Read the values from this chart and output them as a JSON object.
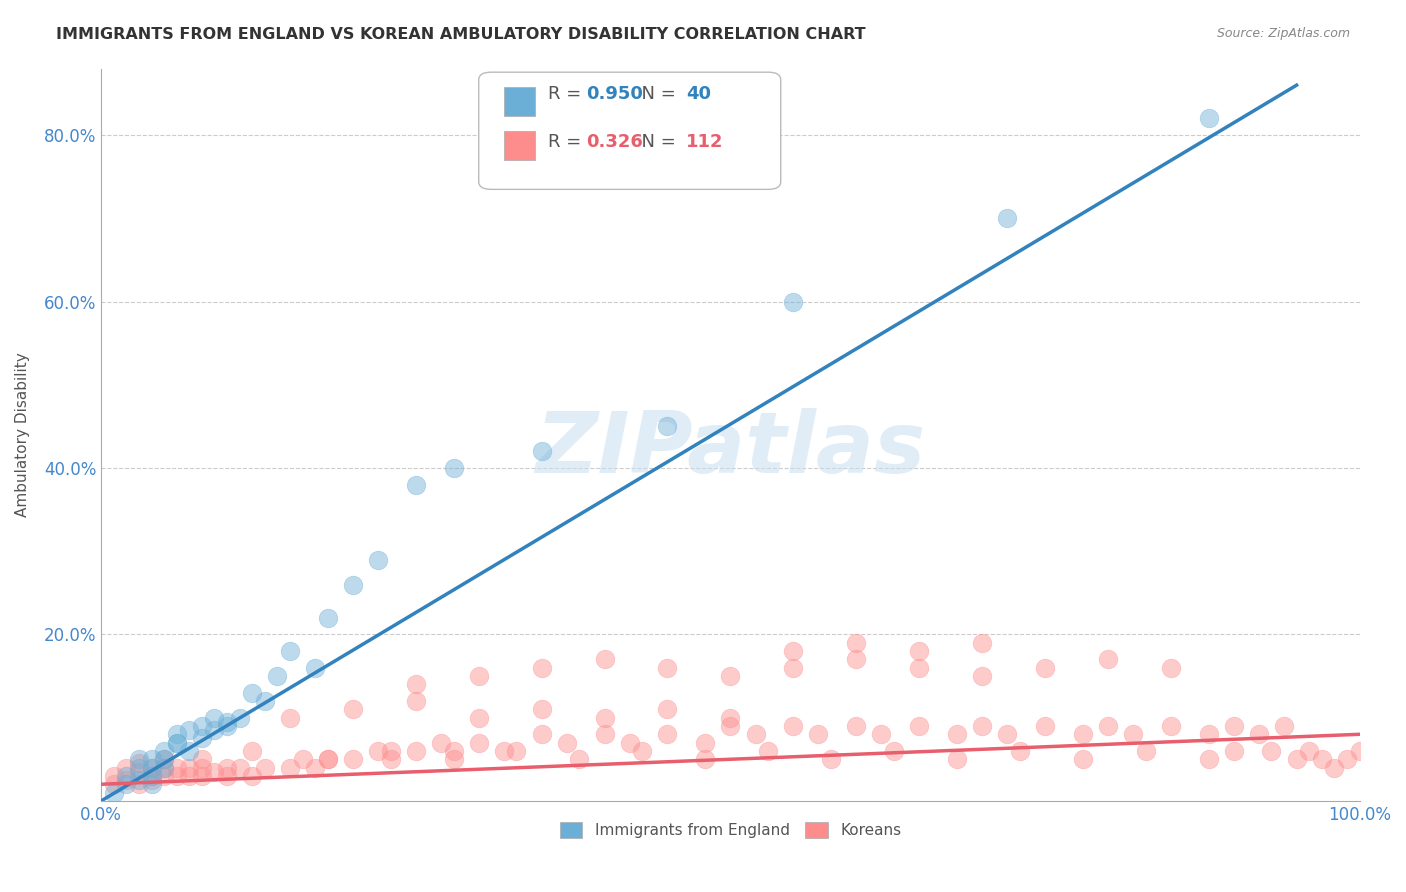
{
  "title": "IMMIGRANTS FROM ENGLAND VS KOREAN AMBULATORY DISABILITY CORRELATION CHART",
  "source": "Source: ZipAtlas.com",
  "ylabel": "Ambulatory Disability",
  "xlabel": "",
  "xlim": [
    0.0,
    1.0
  ],
  "ylim": [
    0.0,
    0.88
  ],
  "xtick_labels": [
    "0.0%",
    "100.0%"
  ],
  "ytick_labels": [
    "20.0%",
    "40.0%",
    "60.0%",
    "80.0%"
  ],
  "ytick_vals": [
    0.2,
    0.4,
    0.6,
    0.8
  ],
  "legend_blue_r": "0.950",
  "legend_blue_n": "40",
  "legend_pink_r": "0.326",
  "legend_pink_n": "112",
  "legend_label_blue": "Immigrants from England",
  "legend_label_pink": "Koreans",
  "blue_color": "#6baed6",
  "pink_color": "#fd8d8d",
  "blue_line_color": "#3182bd",
  "pink_line_color": "#e85e6c",
  "watermark": "ZIPatlas",
  "bg_color": "#ffffff",
  "grid_color": "#cccccc",
  "title_color": "#333333",
  "axis_label_color": "#555555",
  "tick_color": "#4488cc",
  "blue_scatter_x": [
    0.01,
    0.02,
    0.02,
    0.03,
    0.03,
    0.03,
    0.04,
    0.04,
    0.04,
    0.04,
    0.05,
    0.05,
    0.05,
    0.06,
    0.06,
    0.06,
    0.07,
    0.07,
    0.08,
    0.08,
    0.09,
    0.09,
    0.1,
    0.1,
    0.11,
    0.12,
    0.13,
    0.14,
    0.15,
    0.17,
    0.18,
    0.2,
    0.22,
    0.25,
    0.28,
    0.35,
    0.45,
    0.55,
    0.72,
    0.88
  ],
  "blue_scatter_y": [
    0.01,
    0.03,
    0.02,
    0.025,
    0.04,
    0.05,
    0.03,
    0.04,
    0.05,
    0.02,
    0.04,
    0.06,
    0.05,
    0.07,
    0.08,
    0.07,
    0.06,
    0.085,
    0.075,
    0.09,
    0.1,
    0.085,
    0.09,
    0.095,
    0.1,
    0.13,
    0.12,
    0.15,
    0.18,
    0.16,
    0.22,
    0.26,
    0.29,
    0.38,
    0.4,
    0.42,
    0.45,
    0.6,
    0.7,
    0.82
  ],
  "pink_scatter_x": [
    0.01,
    0.01,
    0.02,
    0.02,
    0.03,
    0.03,
    0.03,
    0.04,
    0.04,
    0.04,
    0.05,
    0.05,
    0.05,
    0.06,
    0.06,
    0.07,
    0.07,
    0.08,
    0.08,
    0.09,
    0.1,
    0.1,
    0.11,
    0.12,
    0.13,
    0.15,
    0.16,
    0.17,
    0.18,
    0.2,
    0.22,
    0.23,
    0.25,
    0.27,
    0.28,
    0.3,
    0.32,
    0.35,
    0.37,
    0.4,
    0.42,
    0.45,
    0.48,
    0.5,
    0.52,
    0.55,
    0.57,
    0.6,
    0.62,
    0.65,
    0.68,
    0.7,
    0.72,
    0.75,
    0.78,
    0.8,
    0.82,
    0.85,
    0.88,
    0.9,
    0.92,
    0.94,
    0.95,
    0.96,
    0.97,
    0.98,
    0.99,
    1.0,
    0.25,
    0.3,
    0.35,
    0.4,
    0.45,
    0.5,
    0.55,
    0.6,
    0.65,
    0.7,
    0.75,
    0.8,
    0.85,
    0.9,
    0.15,
    0.2,
    0.25,
    0.3,
    0.35,
    0.4,
    0.45,
    0.5,
    0.08,
    0.12,
    0.18,
    0.23,
    0.28,
    0.33,
    0.38,
    0.43,
    0.48,
    0.53,
    0.58,
    0.63,
    0.68,
    0.73,
    0.78,
    0.83,
    0.88,
    0.93,
    0.55,
    0.6,
    0.65,
    0.7
  ],
  "pink_scatter_y": [
    0.02,
    0.03,
    0.025,
    0.04,
    0.02,
    0.035,
    0.045,
    0.025,
    0.04,
    0.03,
    0.03,
    0.04,
    0.05,
    0.03,
    0.04,
    0.03,
    0.04,
    0.03,
    0.04,
    0.035,
    0.04,
    0.03,
    0.04,
    0.03,
    0.04,
    0.04,
    0.05,
    0.04,
    0.05,
    0.05,
    0.06,
    0.05,
    0.06,
    0.07,
    0.06,
    0.07,
    0.06,
    0.08,
    0.07,
    0.08,
    0.07,
    0.08,
    0.07,
    0.09,
    0.08,
    0.09,
    0.08,
    0.09,
    0.08,
    0.09,
    0.08,
    0.09,
    0.08,
    0.09,
    0.08,
    0.09,
    0.08,
    0.09,
    0.08,
    0.09,
    0.08,
    0.09,
    0.05,
    0.06,
    0.05,
    0.04,
    0.05,
    0.06,
    0.14,
    0.15,
    0.16,
    0.17,
    0.16,
    0.15,
    0.16,
    0.17,
    0.16,
    0.15,
    0.16,
    0.17,
    0.16,
    0.06,
    0.1,
    0.11,
    0.12,
    0.1,
    0.11,
    0.1,
    0.11,
    0.1,
    0.05,
    0.06,
    0.05,
    0.06,
    0.05,
    0.06,
    0.05,
    0.06,
    0.05,
    0.06,
    0.05,
    0.06,
    0.05,
    0.06,
    0.05,
    0.06,
    0.05,
    0.06,
    0.18,
    0.19,
    0.18,
    0.19
  ],
  "blue_line_x": [
    0.0,
    0.95
  ],
  "blue_line_y": [
    0.0,
    0.86
  ],
  "pink_line_x": [
    0.0,
    1.0
  ],
  "pink_line_y": [
    0.02,
    0.08
  ]
}
